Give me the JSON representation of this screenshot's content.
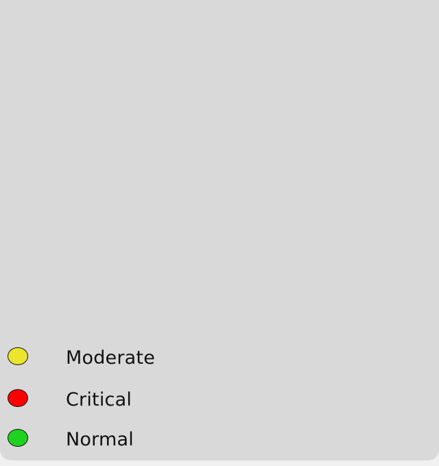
{
  "legend": {
    "items": [
      {
        "label": "Moderate",
        "color": "#ebe52e"
      },
      {
        "label": "Critical",
        "color": "#ff0000"
      },
      {
        "label": "Normal",
        "color": "#1fd21f"
      }
    ]
  }
}
